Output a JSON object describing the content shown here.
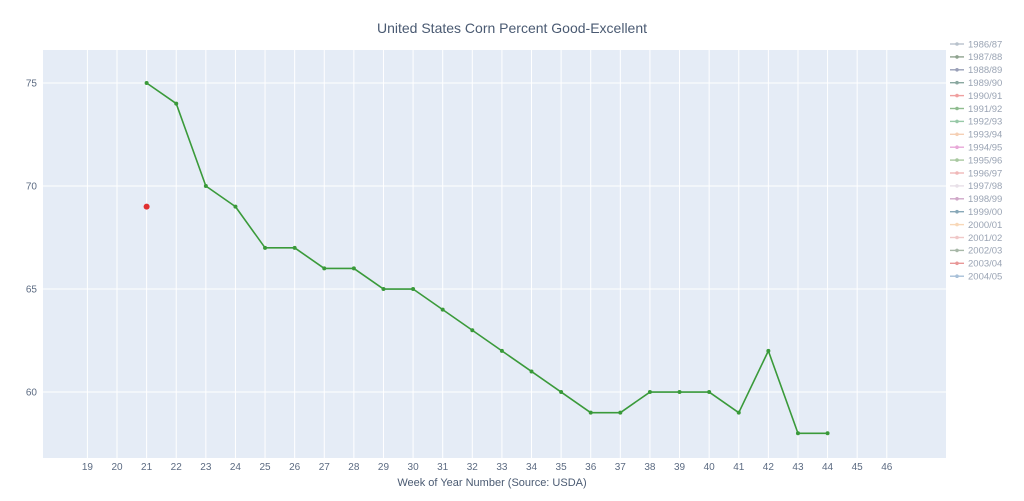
{
  "chart_data": {
    "type": "line",
    "title": "United States Corn Percent Good-Excellent",
    "xlabel": "Week of Year Number     (Source: USDA)",
    "ylabel": "",
    "x_ticks": [
      19,
      20,
      21,
      22,
      23,
      24,
      25,
      26,
      27,
      28,
      29,
      30,
      31,
      32,
      33,
      34,
      35,
      36,
      37,
      38,
      39,
      40,
      41,
      42,
      43,
      44,
      45,
      46
    ],
    "y_ticks": [
      60,
      65,
      70,
      75
    ],
    "xlim": [
      17.5,
      48
    ],
    "ylim": [
      56.8,
      76.6
    ],
    "grid": true,
    "legend_position": "right",
    "legend": [
      {
        "name": "1986/87",
        "color": "#b8c2cc"
      },
      {
        "name": "1987/88",
        "color": "#8fa38f"
      },
      {
        "name": "1988/89",
        "color": "#9aa0b8"
      },
      {
        "name": "1989/90",
        "color": "#8aa8a0"
      },
      {
        "name": "1990/91",
        "color": "#f0a0a0"
      },
      {
        "name": "1991/92",
        "color": "#8fbc8f"
      },
      {
        "name": "1992/93",
        "color": "#98c9a8"
      },
      {
        "name": "1993/94",
        "color": "#f5d0b5"
      },
      {
        "name": "1994/95",
        "color": "#e8a8d8"
      },
      {
        "name": "1995/96",
        "color": "#a8c8a0"
      },
      {
        "name": "1996/97",
        "color": "#f0b8b8"
      },
      {
        "name": "1997/98",
        "color": "#e8e0e8"
      },
      {
        "name": "1998/99",
        "color": "#d0a8c8"
      },
      {
        "name": "1999/00",
        "color": "#88a8b8"
      },
      {
        "name": "2000/01",
        "color": "#f8d8b8"
      },
      {
        "name": "2001/02",
        "color": "#f0c8c8"
      },
      {
        "name": "2002/03",
        "color": "#a8b8a8"
      },
      {
        "name": "2003/04",
        "color": "#e89898"
      },
      {
        "name": "2004/05",
        "color": "#a8c0d8"
      }
    ],
    "series": [
      {
        "color": "#3a9a3a",
        "x": [
          21,
          22,
          23,
          24,
          25,
          26,
          27,
          28,
          29,
          30,
          31,
          32,
          33,
          34,
          35,
          36,
          37,
          38,
          39,
          40,
          41,
          42,
          43,
          44
        ],
        "y": [
          75,
          74,
          70,
          69,
          67,
          67,
          66,
          66,
          65,
          65,
          64,
          63,
          62,
          61,
          60,
          59,
          59,
          60,
          60,
          60,
          59,
          62,
          58,
          58
        ]
      },
      {
        "color": "#e03030",
        "x": [
          21
        ],
        "y": [
          69
        ]
      }
    ]
  }
}
